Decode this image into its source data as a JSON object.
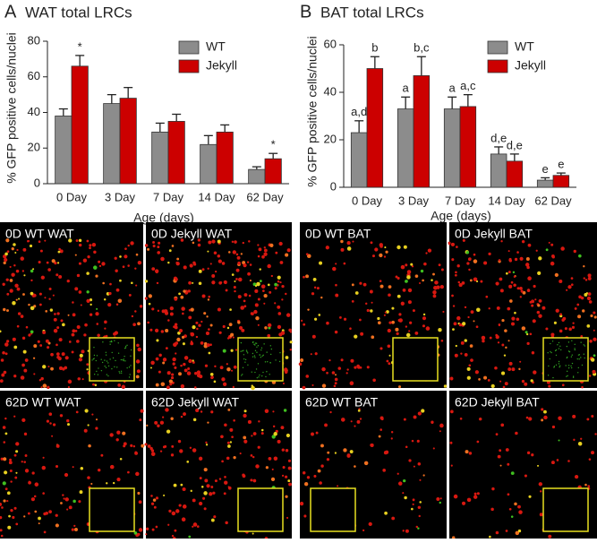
{
  "chart_data": [
    {
      "type": "bar",
      "panel": "A",
      "title": "WAT total LRCs",
      "ylabel": "% GFP positive cells/nuclei",
      "xlabel": "Age (days)",
      "categories": [
        "0 Day",
        "3 Day",
        "7 Day",
        "14 Day",
        "62 Day"
      ],
      "series": [
        {
          "name": "WT",
          "color": "#8c8c8c",
          "values": [
            38,
            45,
            29,
            22,
            8
          ],
          "errors": [
            4,
            5,
            5,
            5,
            1.5
          ],
          "labels": [
            null,
            null,
            null,
            null,
            null
          ]
        },
        {
          "name": "Jekyll",
          "color": "#cc0000",
          "values": [
            66,
            48,
            35,
            29,
            14
          ],
          "errors": [
            6,
            6,
            4,
            4,
            3
          ],
          "labels": [
            "*",
            null,
            null,
            null,
            "*"
          ]
        }
      ],
      "ylim": [
        0,
        80
      ],
      "yticks": [
        0,
        20,
        40,
        60,
        80
      ],
      "legend": "upper right"
    },
    {
      "type": "bar",
      "panel": "B",
      "title": "BAT total LRCs",
      "ylabel": "% GFP positive cells/nuclei",
      "xlabel": "Age (days)",
      "categories": [
        "0 Day",
        "3 Day",
        "7 Day",
        "14 Day",
        "62 Day"
      ],
      "series": [
        {
          "name": "WT",
          "color": "#8c8c8c",
          "values": [
            23,
            33,
            33,
            14,
            3
          ],
          "errors": [
            5,
            5,
            5,
            3,
            1
          ],
          "labels": [
            "a,d",
            "a",
            "a",
            "d,e",
            "e"
          ]
        },
        {
          "name": "Jekyll",
          "color": "#cc0000",
          "values": [
            50,
            47,
            34,
            11,
            5
          ],
          "errors": [
            5,
            8,
            5,
            3,
            1
          ],
          "labels": [
            "b",
            "b,c",
            "a,c",
            "d,e",
            "e"
          ]
        }
      ],
      "ylim": [
        0,
        60
      ],
      "yticks": [
        0,
        20,
        40,
        60
      ],
      "legend": "upper right"
    }
  ],
  "micrographs": [
    {
      "label": "0D WT WAT"
    },
    {
      "label": "0D Jekyll WAT"
    },
    {
      "label": "62D WT WAT"
    },
    {
      "label": "62D Jekyll WAT"
    },
    {
      "label": "0D WT BAT"
    },
    {
      "label": "0D Jekyll BAT"
    },
    {
      "label": "62D WT BAT"
    },
    {
      "label": "62D Jekyll BAT"
    }
  ]
}
